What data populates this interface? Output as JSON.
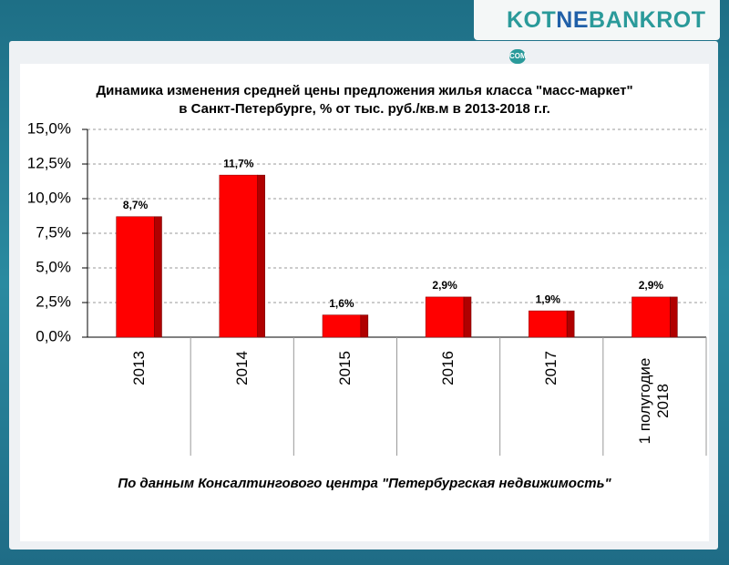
{
  "header": {
    "logo": {
      "kot": "KOT",
      "ne": "NE",
      "bankrot": "BANKROT",
      "com": "COM"
    }
  },
  "chart_data": {
    "type": "bar",
    "title": "Динамика изменения средней цены предложения жилья класса \"масс-маркет\" в Санкт-Петербурге, % от тыс. руб./кв.м в 2013-2018 г.г.",
    "source": "По данным Консалтингового центра \"Петербургская недвижимость\"",
    "categories": [
      "2013",
      "2014",
      "2015",
      "2016",
      "2017",
      "1 полугодие 2018"
    ],
    "values": [
      8.7,
      11.7,
      1.6,
      2.9,
      1.9,
      2.9
    ],
    "value_labels": [
      "8,7%",
      "11,7%",
      "1,6%",
      "2,9%",
      "1,9%",
      "2,9%"
    ],
    "color": "#ff0000",
    "ylim": [
      0,
      15
    ],
    "yticks": [
      {
        "value": 0,
        "label": "0,0%"
      },
      {
        "value": 2.5,
        "label": "2,5%"
      },
      {
        "value": 5,
        "label": "5,0%"
      },
      {
        "value": 7.5,
        "label": "7,5%"
      },
      {
        "value": 10,
        "label": "10,0%"
      },
      {
        "value": 12.5,
        "label": "12,5%"
      },
      {
        "value": 15,
        "label": "15,0%"
      }
    ],
    "grid": true
  }
}
